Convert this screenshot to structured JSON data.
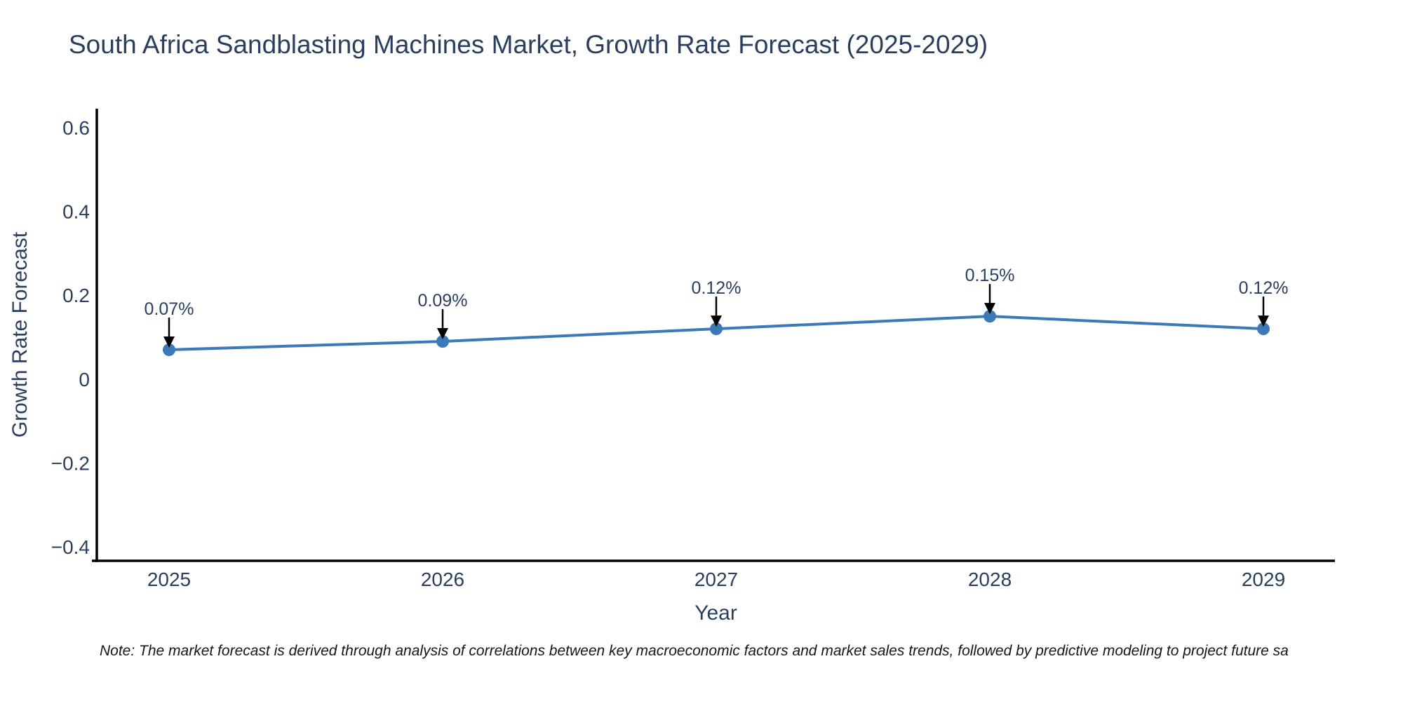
{
  "title": "South Africa Sandblasting Machines Market, Growth Rate Forecast (2025-2029)",
  "note": "Note: The market forecast is derived through analysis of correlations between key macroeconomic factors and market sales trends, followed by predictive modeling to project future sa",
  "chart_data": {
    "type": "line",
    "title": "South Africa Sandblasting Machines Market, Growth Rate Forecast (2025-2029)",
    "xlabel": "Year",
    "ylabel": "Growth Rate Forecast",
    "x": [
      2025,
      2026,
      2027,
      2028,
      2029
    ],
    "values": [
      0.07,
      0.09,
      0.12,
      0.15,
      0.12
    ],
    "point_labels": [
      "0.07%",
      "0.09%",
      "0.12%",
      "0.15%",
      "0.12%"
    ],
    "xtick_labels": [
      "2025",
      "2026",
      "2027",
      "2028",
      "2029"
    ],
    "yticks": [
      0.6,
      0.4,
      0.2,
      0,
      -0.2,
      -0.4
    ],
    "ytick_labels": [
      "0.6",
      "0.4",
      "0.2",
      "0",
      "−0.2",
      "−0.4"
    ],
    "ylim": [
      -0.4336,
      0.6454
    ],
    "xlim": [
      2024.7359,
      2029.2615
    ],
    "grid": false,
    "legend": "none",
    "line_color": "#3c79b8",
    "marker_color": "#3c79b8",
    "axis_color": "#000000",
    "annotation_arrow_color": "#000000",
    "text_color": "#2a3f5f"
  }
}
